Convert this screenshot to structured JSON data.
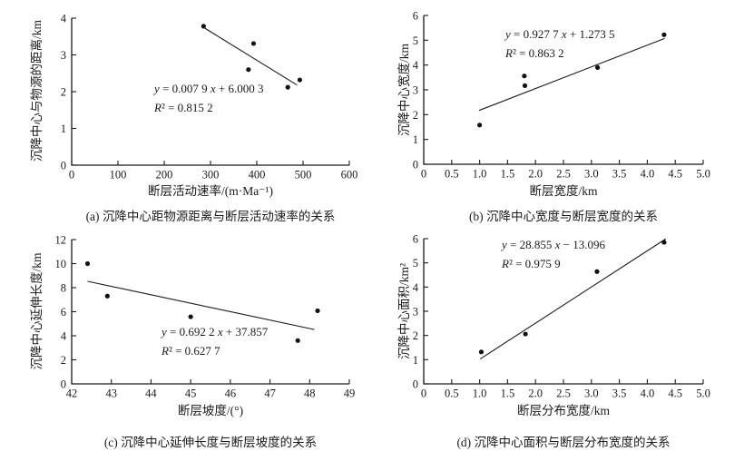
{
  "figure": {
    "background": "#ffffff",
    "ink_color": "#1a1a1a",
    "point_color": "#111111"
  },
  "chart_data": [
    {
      "id": "a",
      "type": "scatter",
      "caption": "(a) 沉降中心距物源距离与断层活动速率的关系",
      "xlabel": "断层活动速率/(m·Ma⁻¹)",
      "ylabel": "沉降中心与物源的距离/km",
      "xlim": [
        0,
        600
      ],
      "ylim": [
        0,
        4
      ],
      "xtick_values": [
        0,
        100,
        200,
        300,
        400,
        500,
        600
      ],
      "xtick_labels": [
        "0",
        "100",
        "200",
        "300",
        "400",
        "500",
        "600"
      ],
      "ytick_values": [
        0,
        1,
        2,
        3,
        4
      ],
      "ytick_labels": [
        "0",
        "1",
        "2",
        "3",
        "4"
      ],
      "points": [
        [
          285,
          3.78
        ],
        [
          393,
          3.31
        ],
        [
          382,
          2.6
        ],
        [
          467,
          2.12
        ],
        [
          493,
          2.32
        ]
      ],
      "trendline": [
        [
          286,
          3.74
        ],
        [
          487,
          2.18
        ]
      ],
      "equation": "y = 0.007 9 x + 6.000 3",
      "r_squared": "R² = 0.815 2",
      "grid": false,
      "legend": false
    },
    {
      "id": "b",
      "type": "scatter",
      "caption": "(b) 沉降中心宽度与断层宽度的关系",
      "xlabel": "断层宽度/km",
      "ylabel": "沉降中心宽度/km",
      "xlim": [
        0,
        5
      ],
      "ylim": [
        0,
        6
      ],
      "xtick_values": [
        0,
        0.5,
        1,
        1.5,
        2,
        2.5,
        3,
        3.5,
        4,
        4.5,
        5
      ],
      "xtick_labels": [
        "0",
        "0.5",
        "1.0",
        "1.5",
        "2.0",
        "2.5",
        "3.0",
        "3.5",
        "4.0",
        "4.5",
        "5.0"
      ],
      "ytick_values": [
        0,
        1,
        2,
        3,
        4,
        5,
        6
      ],
      "ytick_labels": [
        "0",
        "1",
        "2",
        "3",
        "4",
        "5",
        "6"
      ],
      "points": [
        [
          1.0,
          1.58
        ],
        [
          1.8,
          3.56
        ],
        [
          1.81,
          3.17
        ],
        [
          3.11,
          3.9
        ],
        [
          4.3,
          5.22
        ]
      ],
      "trendline": [
        [
          0.99,
          2.17
        ],
        [
          4.31,
          5.07
        ]
      ],
      "equation": "y = 0.927 7 x + 1.273 5",
      "r_squared": "R² = 0.863 2",
      "grid": false,
      "legend": false
    },
    {
      "id": "c",
      "type": "scatter",
      "caption": "(c) 沉降中心延伸长度与断层坡度的关系",
      "xlabel": "断层坡度/(°)",
      "ylabel": "沉降中心延伸长度/km",
      "xlim": [
        42,
        49
      ],
      "ylim": [
        0,
        12
      ],
      "xtick_values": [
        42,
        43,
        44,
        45,
        46,
        47,
        48,
        49
      ],
      "xtick_labels": [
        "42",
        "43",
        "44",
        "45",
        "46",
        "47",
        "48",
        "49"
      ],
      "ytick_values": [
        0,
        2,
        4,
        6,
        8,
        10,
        12
      ],
      "ytick_labels": [
        "0",
        "2",
        "4",
        "6",
        "8",
        "10",
        "12"
      ],
      "points": [
        [
          42.4,
          10.0
        ],
        [
          42.9,
          7.3
        ],
        [
          45.0,
          5.58
        ],
        [
          47.7,
          3.6
        ],
        [
          48.2,
          6.08
        ]
      ],
      "trendline": [
        [
          42.4,
          8.53
        ],
        [
          48.12,
          4.52
        ]
      ],
      "equation": "y = 0.692 2 x + 37.857",
      "r_squared": "R² = 0.627 7",
      "grid": false,
      "legend": false
    },
    {
      "id": "d",
      "type": "scatter",
      "caption": "(d) 沉降中心面积与断层分布宽度的关系",
      "xlabel": "断层分布宽度/km",
      "ylabel": "沉降中心面积/km²",
      "xlim": [
        0,
        5
      ],
      "ylim": [
        0,
        6
      ],
      "xtick_values": [
        0,
        0.5,
        1,
        1.5,
        2,
        2.5,
        3,
        3.5,
        4,
        4.5,
        5
      ],
      "xtick_labels": [
        "0",
        "0.5",
        "1.0",
        "1.5",
        "2.0",
        "2.5",
        "3.0",
        "3.5",
        "4.0",
        "4.5",
        "5.0"
      ],
      "ytick_values": [
        0,
        1,
        2,
        3,
        4,
        5,
        6
      ],
      "ytick_labels": [
        "0",
        "1",
        "2",
        "3",
        "4",
        "5",
        "6"
      ],
      "points": [
        [
          1.03,
          1.32
        ],
        [
          1.82,
          2.06
        ],
        [
          3.1,
          4.64
        ],
        [
          4.3,
          5.85
        ]
      ],
      "trendline": [
        [
          1.01,
          1.03
        ],
        [
          4.33,
          5.99
        ]
      ],
      "equation": "y = 28.855 x − 13.096",
      "r_squared": "R² = 0.975 9",
      "grid": false,
      "legend": false
    }
  ]
}
